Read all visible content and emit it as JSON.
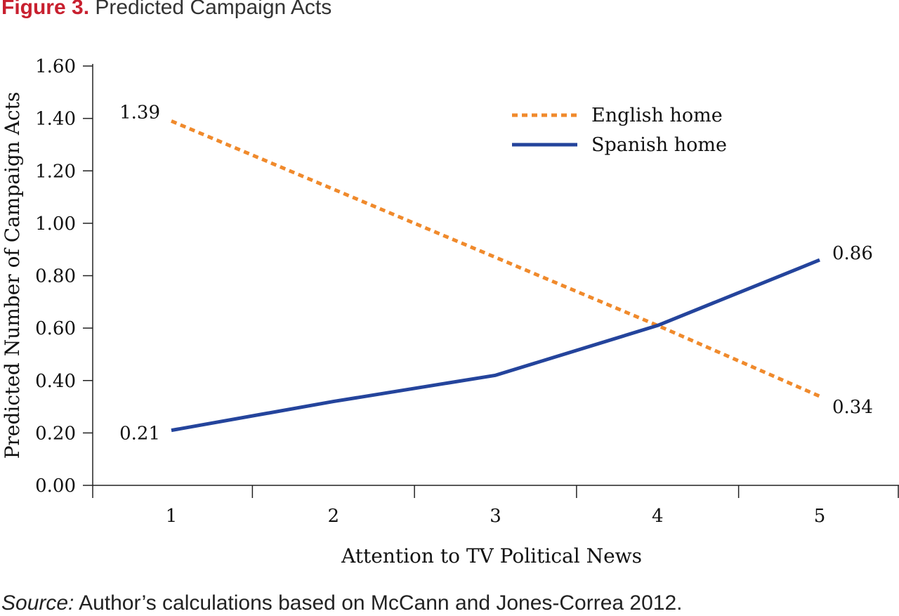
{
  "figure": {
    "label": "Figure 3.",
    "title": "Predicted Campaign Acts"
  },
  "source": {
    "label": "Source:",
    "text": "Author’s calculations based on McCann and Jones-Correa 2012."
  },
  "chart_data": {
    "type": "line",
    "title": "Predicted Campaign Acts",
    "xlabel": "Attention to TV Political News",
    "ylabel": "Predicted Number of Campaign Acts",
    "x": [
      1,
      2,
      3,
      4,
      5
    ],
    "x_tick_labels": [
      "1",
      "2",
      "3",
      "4",
      "5"
    ],
    "xlim": [
      0.5,
      5.5
    ],
    "ylim": [
      0,
      1.6
    ],
    "y_ticks": [
      0,
      0.2,
      0.4,
      0.6,
      0.8,
      1.0,
      1.2,
      1.4,
      1.6
    ],
    "y_tick_labels": [
      "0.00",
      "0.20",
      "0.40",
      "0.60",
      "0.80",
      "1.00",
      "1.20",
      "1.40",
      "1.60"
    ],
    "grid": false,
    "legend_position": "top-right",
    "series": [
      {
        "name": "English home",
        "values": [
          1.39,
          1.13,
          0.87,
          0.61,
          0.34
        ],
        "color": "#f08a2c",
        "line_style": "dotted"
      },
      {
        "name": "Spanish home",
        "values": [
          0.21,
          0.32,
          0.42,
          0.61,
          0.86
        ],
        "color": "#24449c",
        "line_style": "solid"
      }
    ],
    "data_labels": [
      {
        "series": "English home",
        "x": 1,
        "text": "1.39"
      },
      {
        "series": "English home",
        "x": 5,
        "text": "0.34"
      },
      {
        "series": "Spanish home",
        "x": 1,
        "text": "0.21"
      },
      {
        "series": "Spanish home",
        "x": 5,
        "text": "0.86"
      }
    ]
  }
}
